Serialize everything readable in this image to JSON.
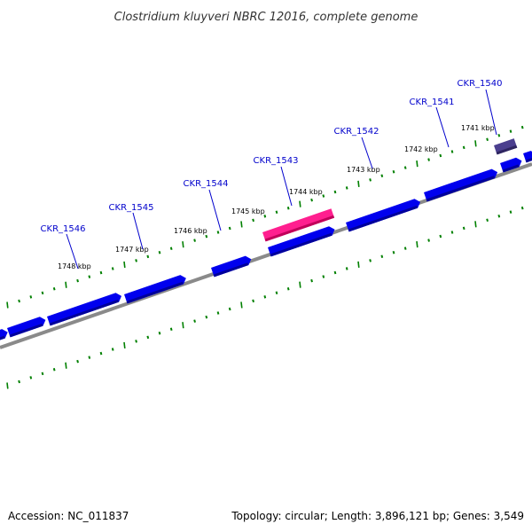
{
  "map": {
    "title": "Clostridium kluyveri NBRC 12016, complete genome",
    "accession": "Accession: NC_011837",
    "summary": "Topology: circular; Length: 3,896,121 bp; Genes: 3,549"
  },
  "position_labels": [
    {
      "label": "1741 kbp"
    },
    {
      "label": "1742 kbp"
    },
    {
      "label": "1743 kbp"
    },
    {
      "label": "1744 kbp"
    },
    {
      "label": "1745 kbp"
    },
    {
      "label": "1746 kbp"
    },
    {
      "label": "1747 kbp"
    },
    {
      "label": "1748 kbp"
    }
  ],
  "gene_labels": [
    {
      "name": "CKR_1540"
    },
    {
      "name": "CKR_1541"
    },
    {
      "name": "CKR_1542"
    },
    {
      "name": "CKR_1543"
    },
    {
      "name": "CKR_1544"
    },
    {
      "name": "CKR_1545"
    },
    {
      "name": "CKR_1546"
    }
  ],
  "colors": {
    "gene": "#0000ee",
    "gene_side": "#00009a",
    "highlight": "#ff1f8f",
    "highlight_side": "#c0005a",
    "other_gene": "#4b3f8f",
    "other_gene_side": "#2e2560",
    "backbone": "#8a8a8a",
    "tick": "#008000",
    "label": "#0000cc"
  }
}
